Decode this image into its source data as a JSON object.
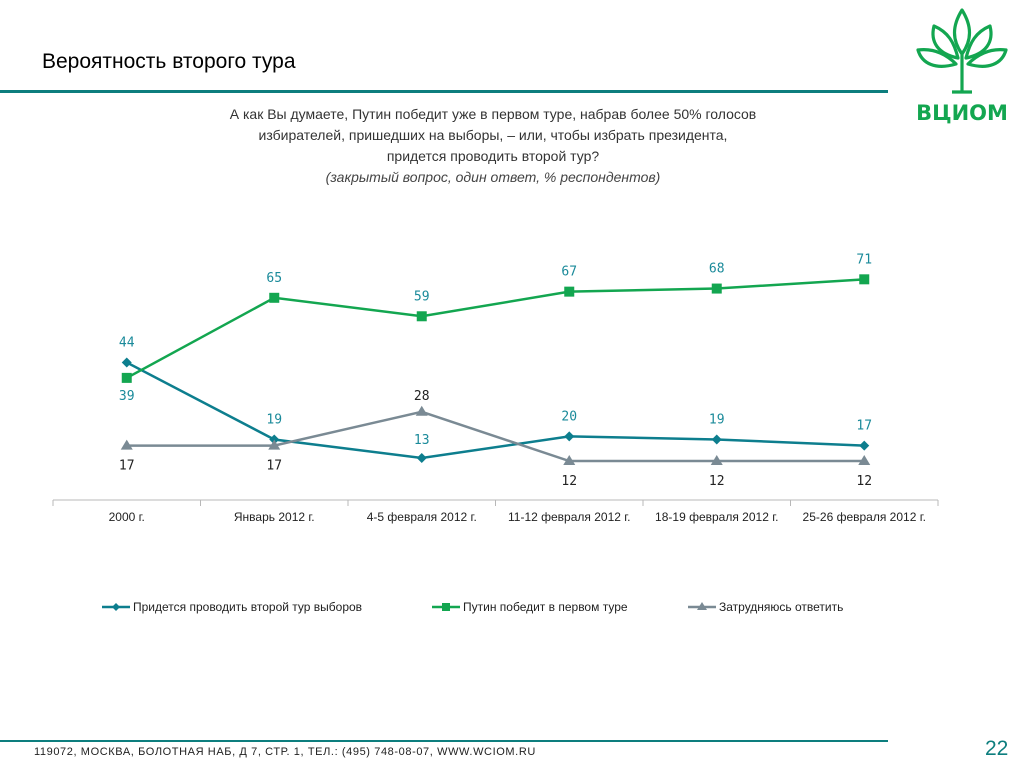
{
  "slide": {
    "title": "Вероятность второго тура",
    "question_lines": [
      "А как Вы думаете, Путин победит уже в первом туре, набрав более 50% голосов",
      "избирателей, пришедших на выборы, – или, чтобы избрать президента,",
      "придется проводить второй тур?"
    ],
    "question_note": "(закрытый вопрос, один ответ, % респондентов)",
    "footer": "119072, МОСКВА, БОЛОТНАЯ НАБ, Д 7, СТР. 1, ТЕЛ.: (495) 748-08-07, WWW.WCIOM.RU",
    "page_number": "22",
    "logo_text": "ВЦИОМ"
  },
  "colors": {
    "teal": "#0d7e8e",
    "green": "#13a650",
    "gray": "#7a8a94",
    "rule": "#0d7e7e"
  },
  "chart_data": {
    "type": "line",
    "categories": [
      "2000 г.",
      "Январь 2012 г.",
      "4-5 февраля 2012 г.",
      "11-12 февраля 2012 г.",
      "18-19 февраля 2012 г.",
      "25-26 февраля 2012 г."
    ],
    "series": [
      {
        "name": "Придется проводить второй тур выборов",
        "values": [
          44,
          19,
          13,
          20,
          19,
          17
        ],
        "color": "#0d7e8e",
        "marker": "diamond",
        "label_color": "#1a8a9a"
      },
      {
        "name": "Путин победит в первом туре",
        "values": [
          39,
          65,
          59,
          67,
          68,
          71
        ],
        "color": "#13a650",
        "marker": "square",
        "label_color": "#1a8a9a"
      },
      {
        "name": "Затрудняюсь ответить",
        "values": [
          17,
          17,
          28,
          12,
          12,
          12
        ],
        "color": "#7a8a94",
        "marker": "triangle",
        "label_color": "#222"
      }
    ],
    "ylim": [
      0,
      80
    ],
    "legend_position": "bottom",
    "grid": false
  }
}
